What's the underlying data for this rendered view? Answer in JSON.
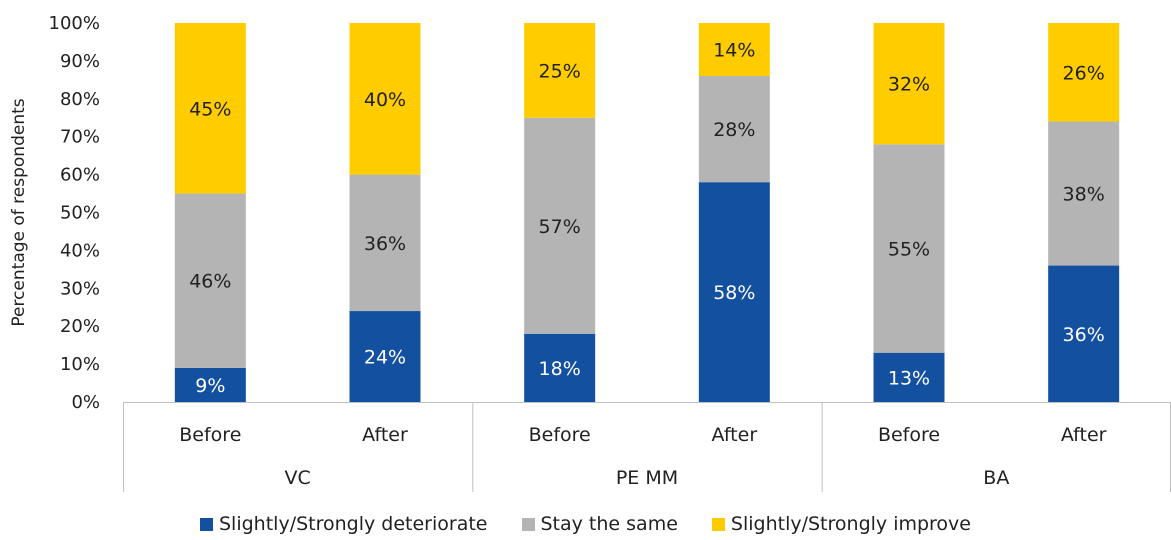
{
  "chart_data": {
    "type": "bar",
    "stacked": true,
    "percent": true,
    "ylabel": "Percentage of respondents",
    "ylim": [
      0,
      100
    ],
    "yticks": [
      "0%",
      "10%",
      "20%",
      "30%",
      "40%",
      "50%",
      "60%",
      "70%",
      "80%",
      "90%",
      "100%"
    ],
    "groups": [
      "VC",
      "PE MM",
      "BA"
    ],
    "categories": [
      "Before",
      "After",
      "Before",
      "After",
      "Before",
      "After"
    ],
    "series": [
      {
        "name": "Slightly/Strongly deteriorate",
        "color": "#1450a0",
        "label_color": "#ffffff",
        "values": [
          9,
          24,
          18,
          58,
          13,
          36
        ],
        "labels": [
          "9%",
          "24%",
          "18%",
          "58%",
          "13%",
          "36%"
        ]
      },
      {
        "name": "Stay the same",
        "color": "#b4b4b4",
        "label_color": "#222222",
        "values": [
          46,
          36,
          57,
          28,
          55,
          38
        ],
        "labels": [
          "46%",
          "36%",
          "57%",
          "28%",
          "55%",
          "38%"
        ]
      },
      {
        "name": "Slightly/Strongly improve",
        "color": "#ffcc00",
        "label_color": "#222222",
        "values": [
          45,
          40,
          25,
          14,
          32,
          26
        ],
        "labels": [
          "45%",
          "40%",
          "25%",
          "14%",
          "32%",
          "26%"
        ]
      }
    ],
    "legend_position": "bottom",
    "grid": false
  }
}
